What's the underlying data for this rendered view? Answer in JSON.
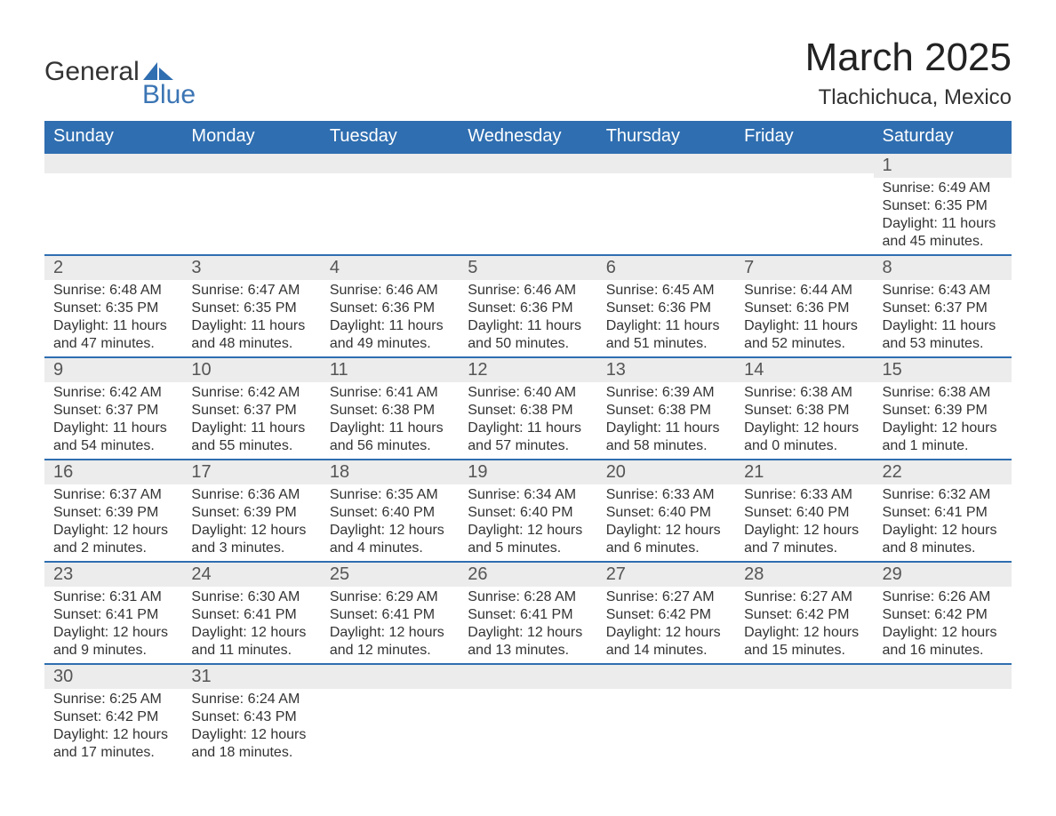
{
  "logo": {
    "text1": "General",
    "text2": "Blue",
    "shape_color": "#2f6eb0"
  },
  "header": {
    "month_title": "March 2025",
    "location": "Tlachichuca, Mexico"
  },
  "colors": {
    "header_bg": "#2f6eb0",
    "header_fg": "#ffffff",
    "daynum_bg": "#ececec",
    "daynum_fg": "#555555",
    "body_fg": "#333333",
    "row_divider": "#2f6eb0",
    "page_bg": "#ffffff"
  },
  "typography": {
    "month_title_fontsize": 44,
    "location_fontsize": 24,
    "th_fontsize": 20,
    "daynum_fontsize": 20,
    "body_fontsize": 16,
    "font_family": "Arial"
  },
  "calendar": {
    "type": "table",
    "columns": [
      "Sunday",
      "Monday",
      "Tuesday",
      "Wednesday",
      "Thursday",
      "Friday",
      "Saturday"
    ],
    "weeks": [
      [
        null,
        null,
        null,
        null,
        null,
        null,
        {
          "n": "1",
          "sr": "Sunrise: 6:49 AM",
          "ss": "Sunset: 6:35 PM",
          "dl1": "Daylight: 11 hours",
          "dl2": "and 45 minutes."
        }
      ],
      [
        {
          "n": "2",
          "sr": "Sunrise: 6:48 AM",
          "ss": "Sunset: 6:35 PM",
          "dl1": "Daylight: 11 hours",
          "dl2": "and 47 minutes."
        },
        {
          "n": "3",
          "sr": "Sunrise: 6:47 AM",
          "ss": "Sunset: 6:35 PM",
          "dl1": "Daylight: 11 hours",
          "dl2": "and 48 minutes."
        },
        {
          "n": "4",
          "sr": "Sunrise: 6:46 AM",
          "ss": "Sunset: 6:36 PM",
          "dl1": "Daylight: 11 hours",
          "dl2": "and 49 minutes."
        },
        {
          "n": "5",
          "sr": "Sunrise: 6:46 AM",
          "ss": "Sunset: 6:36 PM",
          "dl1": "Daylight: 11 hours",
          "dl2": "and 50 minutes."
        },
        {
          "n": "6",
          "sr": "Sunrise: 6:45 AM",
          "ss": "Sunset: 6:36 PM",
          "dl1": "Daylight: 11 hours",
          "dl2": "and 51 minutes."
        },
        {
          "n": "7",
          "sr": "Sunrise: 6:44 AM",
          "ss": "Sunset: 6:36 PM",
          "dl1": "Daylight: 11 hours",
          "dl2": "and 52 minutes."
        },
        {
          "n": "8",
          "sr": "Sunrise: 6:43 AM",
          "ss": "Sunset: 6:37 PM",
          "dl1": "Daylight: 11 hours",
          "dl2": "and 53 minutes."
        }
      ],
      [
        {
          "n": "9",
          "sr": "Sunrise: 6:42 AM",
          "ss": "Sunset: 6:37 PM",
          "dl1": "Daylight: 11 hours",
          "dl2": "and 54 minutes."
        },
        {
          "n": "10",
          "sr": "Sunrise: 6:42 AM",
          "ss": "Sunset: 6:37 PM",
          "dl1": "Daylight: 11 hours",
          "dl2": "and 55 minutes."
        },
        {
          "n": "11",
          "sr": "Sunrise: 6:41 AM",
          "ss": "Sunset: 6:38 PM",
          "dl1": "Daylight: 11 hours",
          "dl2": "and 56 minutes."
        },
        {
          "n": "12",
          "sr": "Sunrise: 6:40 AM",
          "ss": "Sunset: 6:38 PM",
          "dl1": "Daylight: 11 hours",
          "dl2": "and 57 minutes."
        },
        {
          "n": "13",
          "sr": "Sunrise: 6:39 AM",
          "ss": "Sunset: 6:38 PM",
          "dl1": "Daylight: 11 hours",
          "dl2": "and 58 minutes."
        },
        {
          "n": "14",
          "sr": "Sunrise: 6:38 AM",
          "ss": "Sunset: 6:38 PM",
          "dl1": "Daylight: 12 hours",
          "dl2": "and 0 minutes."
        },
        {
          "n": "15",
          "sr": "Sunrise: 6:38 AM",
          "ss": "Sunset: 6:39 PM",
          "dl1": "Daylight: 12 hours",
          "dl2": "and 1 minute."
        }
      ],
      [
        {
          "n": "16",
          "sr": "Sunrise: 6:37 AM",
          "ss": "Sunset: 6:39 PM",
          "dl1": "Daylight: 12 hours",
          "dl2": "and 2 minutes."
        },
        {
          "n": "17",
          "sr": "Sunrise: 6:36 AM",
          "ss": "Sunset: 6:39 PM",
          "dl1": "Daylight: 12 hours",
          "dl2": "and 3 minutes."
        },
        {
          "n": "18",
          "sr": "Sunrise: 6:35 AM",
          "ss": "Sunset: 6:40 PM",
          "dl1": "Daylight: 12 hours",
          "dl2": "and 4 minutes."
        },
        {
          "n": "19",
          "sr": "Sunrise: 6:34 AM",
          "ss": "Sunset: 6:40 PM",
          "dl1": "Daylight: 12 hours",
          "dl2": "and 5 minutes."
        },
        {
          "n": "20",
          "sr": "Sunrise: 6:33 AM",
          "ss": "Sunset: 6:40 PM",
          "dl1": "Daylight: 12 hours",
          "dl2": "and 6 minutes."
        },
        {
          "n": "21",
          "sr": "Sunrise: 6:33 AM",
          "ss": "Sunset: 6:40 PM",
          "dl1": "Daylight: 12 hours",
          "dl2": "and 7 minutes."
        },
        {
          "n": "22",
          "sr": "Sunrise: 6:32 AM",
          "ss": "Sunset: 6:41 PM",
          "dl1": "Daylight: 12 hours",
          "dl2": "and 8 minutes."
        }
      ],
      [
        {
          "n": "23",
          "sr": "Sunrise: 6:31 AM",
          "ss": "Sunset: 6:41 PM",
          "dl1": "Daylight: 12 hours",
          "dl2": "and 9 minutes."
        },
        {
          "n": "24",
          "sr": "Sunrise: 6:30 AM",
          "ss": "Sunset: 6:41 PM",
          "dl1": "Daylight: 12 hours",
          "dl2": "and 11 minutes."
        },
        {
          "n": "25",
          "sr": "Sunrise: 6:29 AM",
          "ss": "Sunset: 6:41 PM",
          "dl1": "Daylight: 12 hours",
          "dl2": "and 12 minutes."
        },
        {
          "n": "26",
          "sr": "Sunrise: 6:28 AM",
          "ss": "Sunset: 6:41 PM",
          "dl1": "Daylight: 12 hours",
          "dl2": "and 13 minutes."
        },
        {
          "n": "27",
          "sr": "Sunrise: 6:27 AM",
          "ss": "Sunset: 6:42 PM",
          "dl1": "Daylight: 12 hours",
          "dl2": "and 14 minutes."
        },
        {
          "n": "28",
          "sr": "Sunrise: 6:27 AM",
          "ss": "Sunset: 6:42 PM",
          "dl1": "Daylight: 12 hours",
          "dl2": "and 15 minutes."
        },
        {
          "n": "29",
          "sr": "Sunrise: 6:26 AM",
          "ss": "Sunset: 6:42 PM",
          "dl1": "Daylight: 12 hours",
          "dl2": "and 16 minutes."
        }
      ],
      [
        {
          "n": "30",
          "sr": "Sunrise: 6:25 AM",
          "ss": "Sunset: 6:42 PM",
          "dl1": "Daylight: 12 hours",
          "dl2": "and 17 minutes."
        },
        {
          "n": "31",
          "sr": "Sunrise: 6:24 AM",
          "ss": "Sunset: 6:43 PM",
          "dl1": "Daylight: 12 hours",
          "dl2": "and 18 minutes."
        },
        null,
        null,
        null,
        null,
        null
      ]
    ]
  }
}
